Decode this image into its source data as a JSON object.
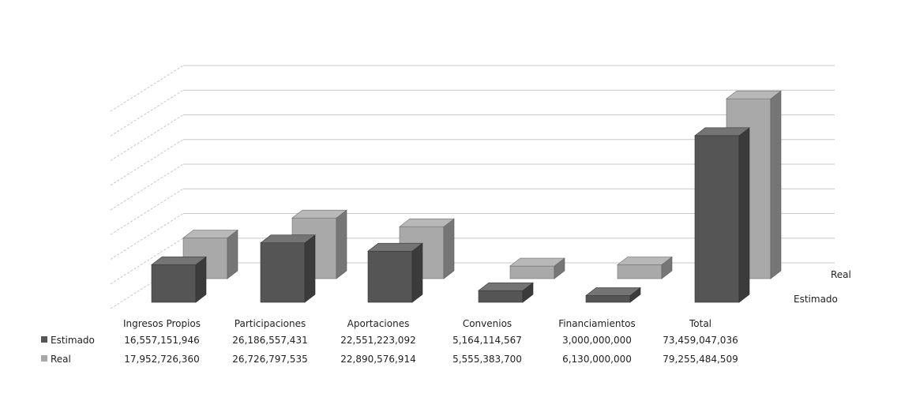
{
  "chart_data": {
    "type": "bar",
    "categories": [
      "Ingresos Propios",
      "Participaciones",
      "Aportaciones",
      "Convenios",
      "Financiamientos",
      "Total"
    ],
    "series": [
      {
        "name": "Estimado",
        "values": [
          16557151946,
          26186557431,
          22551223092,
          5164114567,
          3000000000,
          73459047036
        ],
        "labels": [
          "16,557,151,946",
          "26,186,557,431",
          "22,551,223,092",
          "5,164,114,567",
          "3,000,000,000",
          "73,459,047,036"
        ],
        "color": "#555555"
      },
      {
        "name": "Real",
        "values": [
          17952726360,
          26726797535,
          22890576914,
          5555383700,
          6130000000,
          79255484509
        ],
        "labels": [
          "17,952,726,360",
          "26,726,797,535",
          "22,890,576,914",
          "5,555,383,700",
          "6,130,000,000",
          "79,255,484,509"
        ],
        "color": "#a9a9a9"
      }
    ],
    "depth_axis_labels": [
      "Estimado",
      "Real"
    ],
    "ylim": [
      0,
      80000000000
    ],
    "grid": true,
    "legend": "data-table",
    "three_d": true
  }
}
